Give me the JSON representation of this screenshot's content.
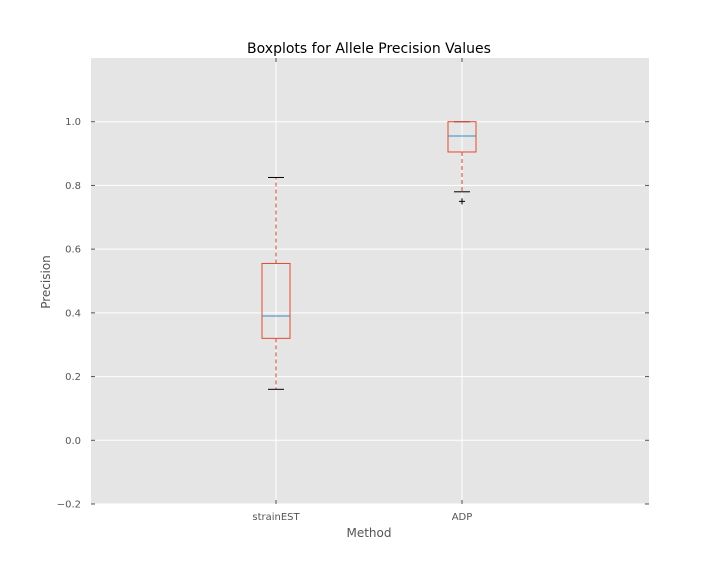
{
  "chart_data": {
    "type": "boxplot",
    "title": "Boxplots for Allele Precision Values",
    "xlabel": "Method",
    "ylabel": "Precision",
    "ylim": [
      -0.2,
      1.2
    ],
    "yticks": [
      -0.2,
      0.0,
      0.2,
      0.4,
      0.6,
      0.8,
      1.0
    ],
    "ytick_labels": [
      "−0.2",
      "0.0",
      "0.2",
      "0.4",
      "0.6",
      "0.8",
      "1.0"
    ],
    "grid": true,
    "categories": [
      "strainEST",
      "ADP"
    ],
    "boxes": [
      {
        "category": "strainEST",
        "whisker_low": 0.16,
        "q1": 0.32,
        "median": 0.39,
        "q3": 0.555,
        "whisker_high": 0.825,
        "outliers": []
      },
      {
        "category": "ADP",
        "whisker_low": 0.78,
        "q1": 0.905,
        "median": 0.955,
        "q3": 1.0,
        "whisker_high": 1.0,
        "outliers": [
          0.75
        ]
      }
    ],
    "colors": {
      "background": "#e5e5e5",
      "grid": "#ffffff",
      "box": "#e24a33",
      "median": "#348abd",
      "whisker": "#e24a33",
      "cap": "#000000",
      "outlier": "#000000"
    }
  }
}
